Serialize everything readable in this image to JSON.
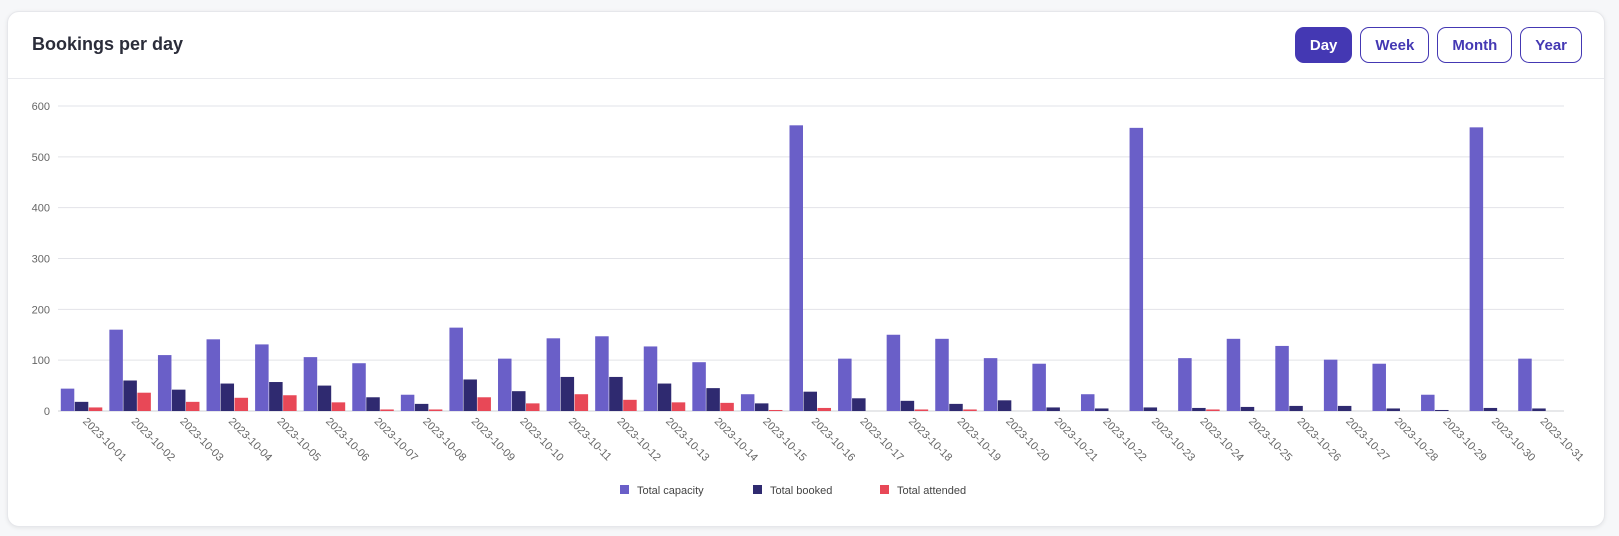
{
  "header": {
    "title": "Bookings per day",
    "ranges": [
      "Day",
      "Week",
      "Month",
      "Year"
    ],
    "active_range": "Day"
  },
  "colors": {
    "capacity": "#6a5fc8",
    "booked": "#2f2a70",
    "attended": "#e84857",
    "grid": "#e2e3e8",
    "tick_text": "#666666",
    "accent": "#4438b3"
  },
  "chart_data": {
    "type": "bar",
    "title": "Bookings per day",
    "xlabel": "",
    "ylabel": "",
    "ylim": [
      0,
      600
    ],
    "yticks": [
      0,
      100,
      200,
      300,
      400,
      500,
      600
    ],
    "grid": true,
    "legend_position": "bottom-center",
    "categories": [
      "2023-10-01",
      "2023-10-02",
      "2023-10-03",
      "2023-10-04",
      "2023-10-05",
      "2023-10-06",
      "2023-10-07",
      "2023-10-08",
      "2023-10-09",
      "2023-10-10",
      "2023-10-11",
      "2023-10-12",
      "2023-10-13",
      "2023-10-14",
      "2023-10-15",
      "2023-10-16",
      "2023-10-17",
      "2023-10-18",
      "2023-10-19",
      "2023-10-20",
      "2023-10-21",
      "2023-10-22",
      "2023-10-23",
      "2023-10-24",
      "2023-10-25",
      "2023-10-26",
      "2023-10-27",
      "2023-10-28",
      "2023-10-29",
      "2023-10-30",
      "2023-10-31"
    ],
    "series": [
      {
        "name": "Total capacity",
        "values": [
          44,
          160,
          110,
          141,
          131,
          106,
          94,
          32,
          164,
          103,
          143,
          147,
          127,
          96,
          33,
          562,
          103,
          150,
          142,
          104,
          93,
          33,
          557,
          104,
          142,
          128,
          101,
          93,
          32,
          558,
          103
        ]
      },
      {
        "name": "Total booked",
        "values": [
          18,
          60,
          42,
          54,
          57,
          50,
          27,
          14,
          62,
          39,
          67,
          67,
          54,
          45,
          15,
          38,
          25,
          20,
          14,
          21,
          7,
          5,
          7,
          6,
          8,
          10,
          10,
          5,
          2,
          6,
          5
        ]
      },
      {
        "name": "Total attended",
        "values": [
          7,
          36,
          18,
          26,
          31,
          17,
          3,
          3,
          27,
          15,
          33,
          22,
          17,
          16,
          2,
          6,
          0,
          3,
          3,
          0,
          0,
          0,
          0,
          3,
          0,
          0,
          0,
          0,
          0,
          0,
          0
        ]
      }
    ]
  }
}
